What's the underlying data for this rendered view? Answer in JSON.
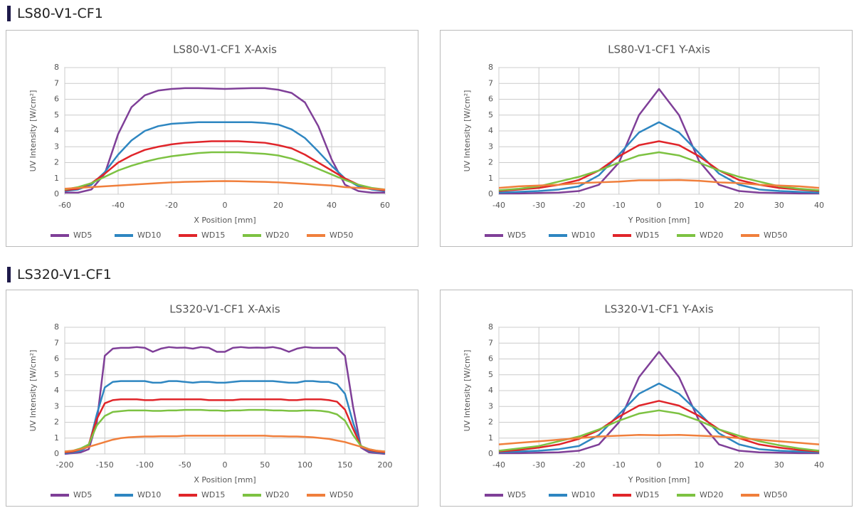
{
  "headings": [
    "LS80-V1-CF1",
    "LS320-V1-CF1"
  ],
  "chart_data": [
    {
      "type": "line",
      "title": "LS80-V1-CF1 X-Axis",
      "x_label": "X Position [mm]",
      "y_label": "UV Intensity [W/cm²]",
      "x": [
        -60,
        -55,
        -50,
        -45,
        -40,
        -35,
        -30,
        -25,
        -20,
        -15,
        -10,
        -5,
        0,
        5,
        10,
        15,
        20,
        25,
        30,
        35,
        40,
        45,
        50,
        55,
        60
      ],
      "xlim": [
        -60,
        60
      ],
      "xticks": [
        -60,
        -40,
        -20,
        0,
        20,
        40,
        60
      ],
      "ylim": [
        0,
        8
      ],
      "yticks": [
        0,
        1,
        2,
        3,
        4,
        5,
        6,
        7,
        8
      ],
      "grid": true,
      "series": [
        {
          "name": "WD5",
          "color": "#7f3f98",
          "values": [
            0.1,
            0.1,
            0.3,
            1.3,
            3.8,
            5.5,
            6.25,
            6.55,
            6.65,
            6.7,
            6.7,
            6.68,
            6.65,
            6.68,
            6.7,
            6.7,
            6.6,
            6.4,
            5.8,
            4.3,
            2.2,
            0.6,
            0.2,
            0.1,
            0.1
          ]
        },
        {
          "name": "WD10",
          "color": "#2e86c1",
          "values": [
            0.2,
            0.3,
            0.6,
            1.4,
            2.5,
            3.4,
            4.0,
            4.3,
            4.45,
            4.5,
            4.55,
            4.55,
            4.55,
            4.55,
            4.55,
            4.5,
            4.4,
            4.1,
            3.55,
            2.7,
            1.8,
            1.0,
            0.5,
            0.3,
            0.2
          ]
        },
        {
          "name": "WD15",
          "color": "#e0252a",
          "values": [
            0.25,
            0.35,
            0.7,
            1.3,
            2.0,
            2.45,
            2.8,
            3.0,
            3.15,
            3.25,
            3.3,
            3.35,
            3.35,
            3.35,
            3.3,
            3.25,
            3.1,
            2.9,
            2.5,
            2.0,
            1.5,
            1.0,
            0.6,
            0.35,
            0.25
          ]
        },
        {
          "name": "WD20",
          "color": "#7dc242",
          "values": [
            0.3,
            0.45,
            0.7,
            1.1,
            1.5,
            1.8,
            2.05,
            2.25,
            2.4,
            2.5,
            2.6,
            2.65,
            2.65,
            2.65,
            2.6,
            2.55,
            2.45,
            2.25,
            1.95,
            1.6,
            1.25,
            0.9,
            0.6,
            0.4,
            0.3
          ]
        },
        {
          "name": "WD50",
          "color": "#f07f3c",
          "values": [
            0.35,
            0.4,
            0.45,
            0.5,
            0.55,
            0.6,
            0.65,
            0.7,
            0.75,
            0.78,
            0.8,
            0.82,
            0.83,
            0.82,
            0.8,
            0.78,
            0.75,
            0.7,
            0.65,
            0.6,
            0.55,
            0.45,
            0.4,
            0.35,
            0.3
          ]
        }
      ]
    },
    {
      "type": "line",
      "title": "LS80-V1-CF1 Y-Axis",
      "x_label": "Y Position [mm]",
      "y_label": "UV Intensity [W/cm²]",
      "x": [
        -40,
        -35,
        -30,
        -25,
        -20,
        -15,
        -10,
        -5,
        0,
        5,
        10,
        15,
        20,
        25,
        30,
        35,
        40
      ],
      "xlim": [
        -40,
        40
      ],
      "xticks": [
        -40,
        -30,
        -20,
        -10,
        0,
        10,
        20,
        30,
        40
      ],
      "ylim": [
        0,
        8
      ],
      "yticks": [
        0,
        1,
        2,
        3,
        4,
        5,
        6,
        7,
        8
      ],
      "grid": true,
      "series": [
        {
          "name": "WD5",
          "color": "#7f3f98",
          "values": [
            0.05,
            0.05,
            0.08,
            0.1,
            0.2,
            0.6,
            2.0,
            5.0,
            6.65,
            5.0,
            2.1,
            0.6,
            0.2,
            0.1,
            0.08,
            0.05,
            0.05
          ]
        },
        {
          "name": "WD10",
          "color": "#2e86c1",
          "values": [
            0.1,
            0.15,
            0.2,
            0.3,
            0.5,
            1.2,
            2.5,
            3.9,
            4.55,
            3.9,
            2.6,
            1.3,
            0.6,
            0.3,
            0.2,
            0.15,
            0.1
          ]
        },
        {
          "name": "WD15",
          "color": "#e0252a",
          "values": [
            0.2,
            0.3,
            0.4,
            0.6,
            0.9,
            1.5,
            2.4,
            3.1,
            3.35,
            3.1,
            2.4,
            1.5,
            0.9,
            0.6,
            0.4,
            0.3,
            0.2
          ]
        },
        {
          "name": "WD20",
          "color": "#7dc242",
          "values": [
            0.25,
            0.35,
            0.5,
            0.8,
            1.1,
            1.5,
            2.0,
            2.45,
            2.65,
            2.45,
            2.0,
            1.5,
            1.1,
            0.8,
            0.5,
            0.35,
            0.25
          ]
        },
        {
          "name": "WD50",
          "color": "#f07f3c",
          "values": [
            0.4,
            0.5,
            0.55,
            0.6,
            0.7,
            0.75,
            0.8,
            0.88,
            0.88,
            0.9,
            0.85,
            0.75,
            0.7,
            0.6,
            0.55,
            0.5,
            0.4
          ]
        }
      ]
    },
    {
      "type": "line",
      "title": "LS320-V1-CF1 X-Axis",
      "x_label": "X Position [mm]",
      "y_label": "UV Intensity [W/cm²]",
      "x": [
        -200,
        -190,
        -180,
        -170,
        -160,
        -150,
        -140,
        -130,
        -120,
        -110,
        -100,
        -90,
        -80,
        -70,
        -60,
        -50,
        -40,
        -30,
        -20,
        -10,
        0,
        10,
        20,
        30,
        40,
        50,
        60,
        70,
        80,
        90,
        100,
        110,
        120,
        130,
        140,
        150,
        160,
        170,
        180,
        190,
        200
      ],
      "xlim": [
        -200,
        200
      ],
      "xticks": [
        -200,
        -150,
        -100,
        -50,
        0,
        50,
        100,
        150,
        200
      ],
      "ylim": [
        0,
        8
      ],
      "yticks": [
        0,
        1,
        2,
        3,
        4,
        5,
        6,
        7,
        8
      ],
      "grid": true,
      "series": [
        {
          "name": "WD5",
          "color": "#7f3f98",
          "values": [
            0,
            0.05,
            0.1,
            0.3,
            2.0,
            6.2,
            6.65,
            6.7,
            6.7,
            6.75,
            6.7,
            6.45,
            6.65,
            6.75,
            6.7,
            6.72,
            6.65,
            6.75,
            6.7,
            6.45,
            6.45,
            6.7,
            6.75,
            6.7,
            6.72,
            6.7,
            6.75,
            6.65,
            6.45,
            6.65,
            6.75,
            6.7,
            6.7,
            6.7,
            6.7,
            6.2,
            3.0,
            0.4,
            0.1,
            0.05,
            0
          ]
        },
        {
          "name": "WD10",
          "color": "#2e86c1",
          "values": [
            0.05,
            0.1,
            0.2,
            0.5,
            2.5,
            4.2,
            4.55,
            4.6,
            4.6,
            4.6,
            4.6,
            4.5,
            4.5,
            4.6,
            4.6,
            4.55,
            4.5,
            4.55,
            4.55,
            4.5,
            4.5,
            4.55,
            4.6,
            4.6,
            4.6,
            4.6,
            4.6,
            4.55,
            4.5,
            4.5,
            4.6,
            4.6,
            4.55,
            4.55,
            4.4,
            3.8,
            2.0,
            0.5,
            0.2,
            0.1,
            0.05
          ]
        },
        {
          "name": "WD15",
          "color": "#e0252a",
          "values": [
            0.1,
            0.15,
            0.3,
            0.6,
            2.2,
            3.2,
            3.4,
            3.45,
            3.45,
            3.45,
            3.4,
            3.4,
            3.45,
            3.45,
            3.45,
            3.45,
            3.45,
            3.45,
            3.4,
            3.4,
            3.4,
            3.4,
            3.45,
            3.45,
            3.45,
            3.45,
            3.45,
            3.45,
            3.4,
            3.4,
            3.45,
            3.45,
            3.45,
            3.4,
            3.3,
            2.8,
            1.6,
            0.5,
            0.25,
            0.15,
            0.1
          ]
        },
        {
          "name": "WD20",
          "color": "#7dc242",
          "values": [
            0.15,
            0.2,
            0.35,
            0.6,
            1.8,
            2.4,
            2.65,
            2.7,
            2.75,
            2.75,
            2.75,
            2.72,
            2.72,
            2.75,
            2.75,
            2.78,
            2.78,
            2.78,
            2.75,
            2.75,
            2.72,
            2.75,
            2.75,
            2.78,
            2.78,
            2.78,
            2.75,
            2.75,
            2.72,
            2.72,
            2.75,
            2.75,
            2.72,
            2.65,
            2.5,
            2.1,
            1.2,
            0.5,
            0.3,
            0.2,
            0.15
          ]
        },
        {
          "name": "WD50",
          "color": "#f07f3c",
          "values": [
            0.15,
            0.2,
            0.3,
            0.45,
            0.6,
            0.75,
            0.9,
            1.0,
            1.05,
            1.08,
            1.1,
            1.1,
            1.12,
            1.12,
            1.12,
            1.15,
            1.15,
            1.15,
            1.15,
            1.15,
            1.15,
            1.15,
            1.15,
            1.15,
            1.15,
            1.15,
            1.12,
            1.12,
            1.1,
            1.1,
            1.08,
            1.05,
            1.0,
            0.95,
            0.85,
            0.75,
            0.6,
            0.45,
            0.3,
            0.2,
            0.15
          ]
        }
      ]
    },
    {
      "type": "line",
      "title": "LS320-V1-CF1 Y-Axis",
      "x_label": "Y Position [mm]",
      "y_label": "UV Intensity [W/cm²]",
      "x": [
        -40,
        -35,
        -30,
        -25,
        -20,
        -15,
        -10,
        -5,
        0,
        5,
        10,
        15,
        20,
        25,
        30,
        35,
        40
      ],
      "xlim": [
        -40,
        40
      ],
      "xticks": [
        -40,
        -30,
        -20,
        -10,
        0,
        10,
        20,
        30,
        40
      ],
      "ylim": [
        0,
        8
      ],
      "yticks": [
        0,
        1,
        2,
        3,
        4,
        5,
        6,
        7,
        8
      ],
      "grid": true,
      "series": [
        {
          "name": "WD5",
          "color": "#7f3f98",
          "values": [
            0.05,
            0.05,
            0.08,
            0.1,
            0.2,
            0.6,
            2.0,
            4.85,
            6.45,
            4.85,
            2.1,
            0.6,
            0.2,
            0.1,
            0.08,
            0.05,
            0.05
          ]
        },
        {
          "name": "WD10",
          "color": "#2e86c1",
          "values": [
            0.1,
            0.15,
            0.2,
            0.3,
            0.5,
            1.2,
            2.5,
            3.8,
            4.45,
            3.8,
            2.6,
            1.3,
            0.6,
            0.3,
            0.2,
            0.15,
            0.1
          ]
        },
        {
          "name": "WD15",
          "color": "#e0252a",
          "values": [
            0.15,
            0.25,
            0.4,
            0.6,
            0.95,
            1.5,
            2.35,
            3.05,
            3.35,
            3.05,
            2.4,
            1.55,
            1.0,
            0.6,
            0.4,
            0.25,
            0.15
          ]
        },
        {
          "name": "WD20",
          "color": "#7dc242",
          "values": [
            0.2,
            0.35,
            0.5,
            0.8,
            1.1,
            1.55,
            2.1,
            2.55,
            2.75,
            2.55,
            2.1,
            1.55,
            1.15,
            0.8,
            0.55,
            0.35,
            0.2
          ]
        },
        {
          "name": "WD50",
          "color": "#f07f3c",
          "values": [
            0.6,
            0.7,
            0.8,
            0.9,
            1.0,
            1.1,
            1.15,
            1.2,
            1.18,
            1.2,
            1.15,
            1.1,
            1.0,
            0.9,
            0.8,
            0.7,
            0.6
          ]
        }
      ]
    }
  ]
}
